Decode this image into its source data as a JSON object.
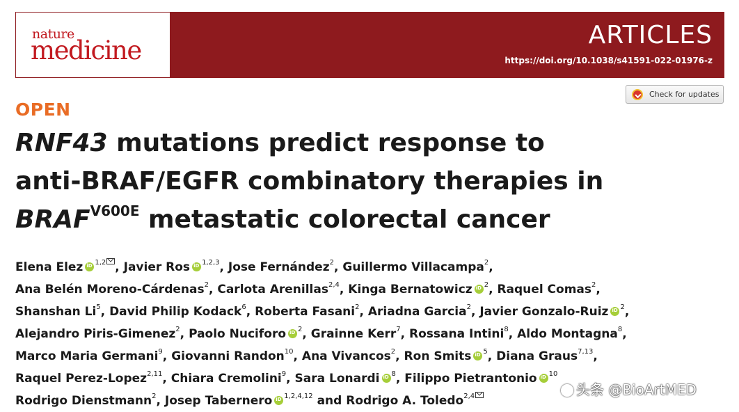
{
  "header": {
    "logo_line1": "nature",
    "logo_line2": "medicine",
    "section": "ARTICLES",
    "doi": "https://doi.org/10.1038/s41591-022-01976-z",
    "banner_color": "#8e1a1e",
    "logo_color": "#c21a20"
  },
  "check_updates": {
    "label": "Check for updates",
    "icon": "crossmark-icon"
  },
  "open_label": "OPEN",
  "open_color": "#e96c25",
  "title": {
    "line1_italic": "RNF43",
    "line1_rest": " mutations predict response to",
    "line2": "anti-BRAF/EGFR combinatory therapies in",
    "line3_italic": "BRAF",
    "line3_sup": "V600E",
    "line3_rest": " metastatic colorectal cancer"
  },
  "authors": {
    "lines": [
      [
        {
          "name": "Elena Elez",
          "orcid": true,
          "sup": "1,2",
          "mail": true,
          "sep": ", "
        },
        {
          "name": "Javier Ros",
          "orcid": true,
          "sup": "1,2,3",
          "sep": ", "
        },
        {
          "name": "Jose Fernández",
          "sup": "2",
          "sep": ", "
        },
        {
          "name": "Guillermo Villacampa",
          "sup": "2",
          "sep": ","
        }
      ],
      [
        {
          "name": "Ana Belén Moreno-Cárdenas",
          "sup": "2",
          "sep": ", "
        },
        {
          "name": "Carlota Arenillas",
          "sup": "2,4",
          "sep": ", "
        },
        {
          "name": "Kinga Bernatowicz",
          "orcid": true,
          "sup": "2",
          "sep": ", "
        },
        {
          "name": "Raquel Comas",
          "sup": "2",
          "sep": ","
        }
      ],
      [
        {
          "name": "Shanshan Li",
          "sup": "5",
          "sep": ", "
        },
        {
          "name": "David Philip Kodack",
          "sup": "6",
          "sep": ", "
        },
        {
          "name": "Roberta Fasani",
          "sup": "2",
          "sep": ", "
        },
        {
          "name": "Ariadna Garcia",
          "sup": "2",
          "sep": ", "
        },
        {
          "name": "Javier Gonzalo-Ruiz",
          "orcid": true,
          "sup": "2",
          "sep": ","
        }
      ],
      [
        {
          "name": "Alejandro Piris-Gimenez",
          "sup": "2",
          "sep": ", "
        },
        {
          "name": "Paolo Nuciforo",
          "orcid": true,
          "sup": "2",
          "sep": ", "
        },
        {
          "name": "Grainne Kerr",
          "sup": "7",
          "sep": ", "
        },
        {
          "name": "Rossana Intini",
          "sup": "8",
          "sep": ", "
        },
        {
          "name": "Aldo Montagna",
          "sup": "8",
          "sep": ","
        }
      ],
      [
        {
          "name": "Marco Maria Germani",
          "sup": "9",
          "sep": ", "
        },
        {
          "name": "Giovanni Randon",
          "sup": "10",
          "sep": ", "
        },
        {
          "name": "Ana Vivancos",
          "sup": "2",
          "sep": ", "
        },
        {
          "name": "Ron Smits",
          "orcid": true,
          "sup": "5",
          "sep": ", "
        },
        {
          "name": "Diana Graus",
          "sup": "7,13",
          "sep": ","
        }
      ],
      [
        {
          "name": "Raquel Perez-Lopez",
          "sup": "2,11",
          "sep": ", "
        },
        {
          "name": "Chiara Cremolini",
          "sup": "9",
          "sep": ", "
        },
        {
          "name": "Sara Lonardi",
          "orcid": true,
          "sup": "8",
          "sep": ", "
        },
        {
          "name": "Filippo Pietrantonio",
          "orcid": true,
          "sup": "10",
          "sep": ""
        }
      ],
      [
        {
          "name": "Rodrigo Dienstmann",
          "sup": "2",
          "sep": ", "
        },
        {
          "name": "Josep Tabernero",
          "orcid": true,
          "sup": "1,2,4,12",
          "sep": " and "
        },
        {
          "name": "Rodrigo A. Toledo",
          "sup": "2,4",
          "mail": true,
          "sep": ""
        }
      ]
    ]
  },
  "watermark": "头条 @BioArtMED"
}
